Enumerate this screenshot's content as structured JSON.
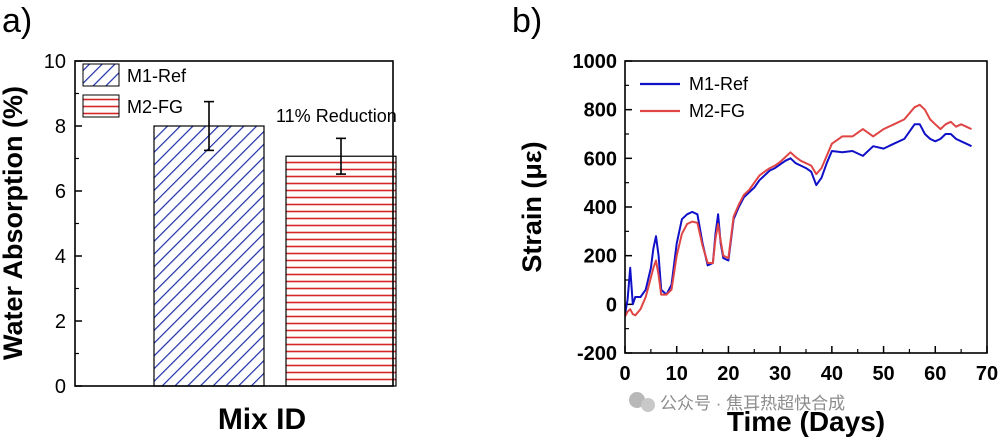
{
  "chart_data": [
    {
      "type": "bar",
      "panel": "a)",
      "categories": [
        "M1-Ref",
        "M2-FG"
      ],
      "series": [
        {
          "name": "M1-Ref",
          "color": "#1f2fa8",
          "pattern": "diagonal-hatch",
          "value": 8.0,
          "error": 0.75
        },
        {
          "name": "M2-FG",
          "color": "#d62728",
          "pattern": "horizontal-hatch",
          "value": 7.07,
          "error": 0.55
        }
      ],
      "xlabel": "Mix ID",
      "ylabel": "Water Absorption (%)",
      "ylim": [
        0,
        10
      ],
      "yticks": [
        "0",
        "2",
        "4",
        "6",
        "8",
        "10"
      ],
      "annotation": "11% Reduction",
      "legend": "top-left"
    },
    {
      "type": "line",
      "panel": "b)",
      "xlabel": "Time (Days)",
      "ylabel": "Strain (με)",
      "xlim": [
        0,
        70
      ],
      "ylim": [
        -200,
        1000
      ],
      "xticks": [
        "0",
        "10",
        "20",
        "30",
        "40",
        "50",
        "60",
        "70"
      ],
      "yticks": [
        "-200",
        "0",
        "200",
        "400",
        "600",
        "800",
        "1000"
      ],
      "legend": "top-left",
      "series": [
        {
          "name": "M1-Ref",
          "color": "#1010c8",
          "x": [
            0,
            0.5,
            1,
            1.5,
            2,
            3,
            4,
            5,
            5.5,
            6,
            6.5,
            7,
            8,
            9,
            10,
            11,
            12,
            13,
            14,
            15,
            16,
            17,
            17.5,
            18,
            18.5,
            19,
            20,
            21,
            22,
            23,
            24,
            25,
            26,
            27,
            28,
            29,
            30,
            31,
            32,
            33,
            34,
            35,
            36,
            37,
            38,
            39,
            40,
            42,
            44,
            46,
            48,
            50,
            52,
            54,
            56,
            57,
            58,
            59,
            60,
            61,
            62,
            63,
            64,
            65,
            66,
            67
          ],
          "y": [
            -40,
            20,
            150,
            0,
            30,
            30,
            60,
            150,
            230,
            280,
            200,
            60,
            40,
            80,
            250,
            350,
            370,
            380,
            370,
            250,
            160,
            170,
            290,
            370,
            250,
            190,
            180,
            350,
            400,
            440,
            460,
            480,
            510,
            530,
            550,
            560,
            575,
            590,
            600,
            580,
            570,
            560,
            545,
            490,
            520,
            580,
            630,
            625,
            630,
            610,
            650,
            640,
            660,
            680,
            740,
            740,
            700,
            680,
            670,
            680,
            700,
            700,
            680,
            670,
            660,
            650
          ]
        },
        {
          "name": "M2-FG",
          "color": "#e04545",
          "x": [
            0,
            0.5,
            1,
            1.5,
            2,
            3,
            4,
            5,
            5.5,
            6,
            6.5,
            7,
            8,
            9,
            10,
            11,
            12,
            13,
            14,
            15,
            16,
            17,
            17.5,
            18,
            18.5,
            19,
            20,
            21,
            22,
            23,
            24,
            25,
            26,
            27,
            28,
            29,
            30,
            31,
            32,
            33,
            34,
            35,
            36,
            37,
            38,
            39,
            40,
            42,
            44,
            46,
            48,
            50,
            52,
            54,
            56,
            57,
            58,
            59,
            60,
            61,
            62,
            63,
            64,
            65,
            66,
            67
          ],
          "y": [
            -50,
            -30,
            -20,
            -40,
            -45,
            -20,
            30,
            110,
            150,
            180,
            120,
            40,
            40,
            60,
            200,
            290,
            330,
            340,
            335,
            240,
            170,
            170,
            270,
            330,
            260,
            200,
            190,
            360,
            410,
            450,
            470,
            500,
            530,
            545,
            560,
            570,
            585,
            605,
            625,
            605,
            590,
            580,
            570,
            535,
            560,
            610,
            660,
            690,
            690,
            720,
            690,
            720,
            740,
            760,
            810,
            820,
            800,
            760,
            740,
            720,
            740,
            750,
            730,
            740,
            730,
            720
          ]
        }
      ]
    }
  ],
  "watermark": "公众号 · 焦耳热超快合成"
}
